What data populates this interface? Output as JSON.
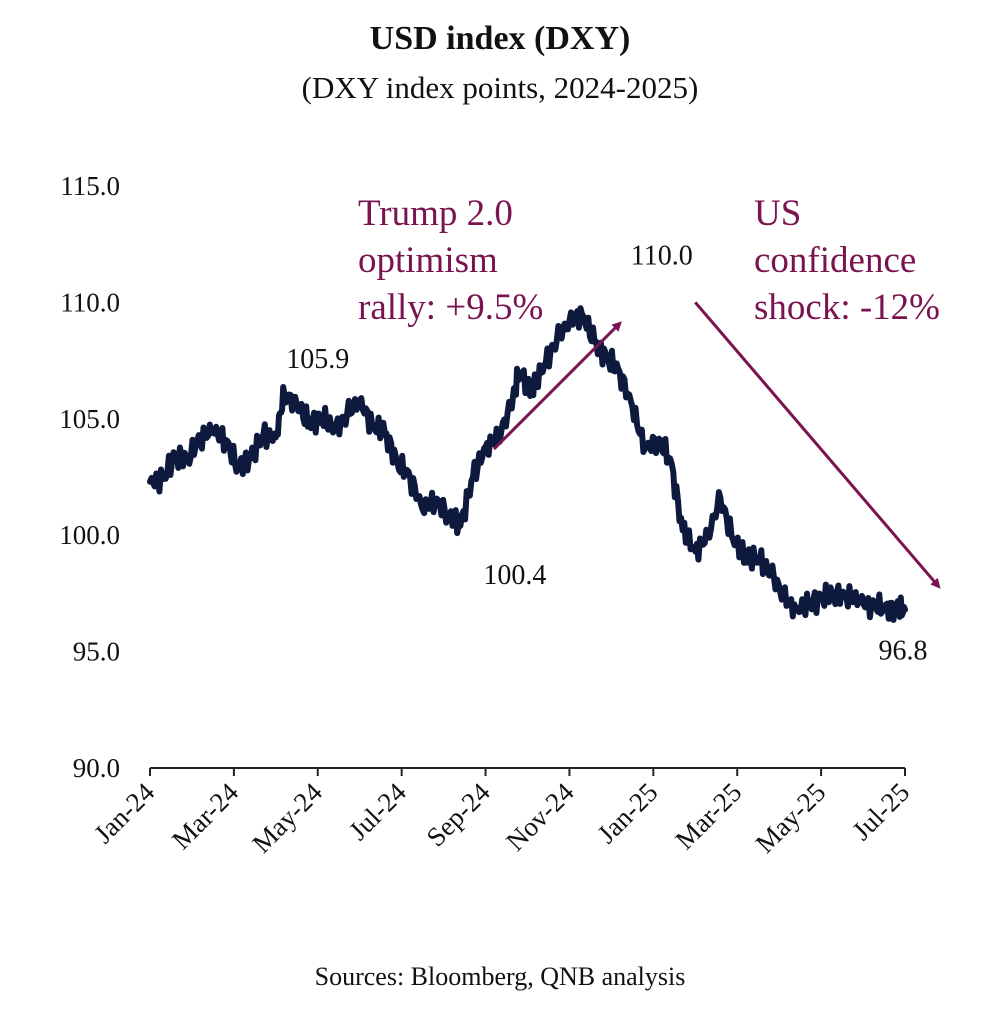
{
  "chart_data": {
    "type": "line",
    "title": "USD index (DXY)",
    "subtitle": "(DXY index points, 2024-2025)",
    "source": "Sources: Bloomberg, QNB analysis",
    "xlabel": "",
    "ylabel": "",
    "ylim": [
      90,
      115
    ],
    "y_ticks": [
      "90.0",
      "95.0",
      "100.0",
      "105.0",
      "110.0",
      "115.0"
    ],
    "x_ticks": [
      "Jan-24",
      "Mar-24",
      "May-24",
      "Jul-24",
      "Sep-24",
      "Nov-24",
      "Jan-25",
      "Mar-25",
      "May-25",
      "Jul-25"
    ],
    "grid": false,
    "line_color": "#0d1a3d",
    "annotation_color": "#7a1450",
    "series": [
      {
        "name": "DXY",
        "x": [
          0,
          0.3,
          0.6,
          0.9,
          1.2,
          1.5,
          1.8,
          2.1,
          2.4,
          2.7,
          3.0,
          3.2,
          3.5,
          3.8,
          4.1,
          4.4,
          4.7,
          5.0,
          5.3,
          5.6,
          5.9,
          6.2,
          6.5,
          6.8,
          7.1,
          7.4,
          7.7,
          8.0,
          8.3,
          8.6,
          8.8,
          9.1,
          9.4,
          9.7,
          10.0,
          10.3,
          10.6,
          10.9,
          11.2,
          11.5,
          11.8,
          12.1,
          12.4,
          12.7,
          13.0,
          13.3,
          13.6,
          13.9,
          14.2,
          14.5,
          14.8,
          15.1,
          15.4,
          15.7,
          16.0,
          16.3,
          16.6,
          16.9,
          17.2,
          17.5,
          17.8,
          18.0
        ],
        "values": [
          102.3,
          102.4,
          103.4,
          103.3,
          104.2,
          104.5,
          104.1,
          102.9,
          103.3,
          104.3,
          104.2,
          106.1,
          105.6,
          104.8,
          105.1,
          104.5,
          105.2,
          105.8,
          104.7,
          104.4,
          103.1,
          102.5,
          101.1,
          101.5,
          100.9,
          100.4,
          102.5,
          103.8,
          104.2,
          105.5,
          107.0,
          106.2,
          107.3,
          108.4,
          109.2,
          109.5,
          108.3,
          107.6,
          107.0,
          105.5,
          103.7,
          104.1,
          103.3,
          100.2,
          99.3,
          100.0,
          101.6,
          99.8,
          99.1,
          99.0,
          98.4,
          97.4,
          96.8,
          97.0,
          97.3,
          97.5,
          97.4,
          97.2,
          97.0,
          96.9,
          96.8,
          96.8
        ],
        "labels": {
          "start_of_range": "",
          "points": [
            {
              "x": 4.0,
              "value": 105.9,
              "label": "105.9"
            },
            {
              "x": 8.7,
              "value": 100.4,
              "label": "100.4"
            },
            {
              "x": 12.2,
              "value": 110.0,
              "label": "110.0"
            },
            {
              "x": 18.0,
              "value": 96.8,
              "label": "96.8"
            }
          ]
        }
      }
    ],
    "annotations": [
      {
        "lines": [
          "Trump  2.0",
          "optimism",
          "rally: +9.5%"
        ],
        "arrow_from": [
          8.2,
          103.7
        ],
        "arrow_to": [
          11.2,
          109.1
        ]
      },
      {
        "lines": [
          "US",
          "confidence",
          "shock: -12%"
        ],
        "arrow_from": [
          13.0,
          110.0
        ],
        "arrow_to": [
          18.8,
          97.8
        ]
      }
    ]
  }
}
